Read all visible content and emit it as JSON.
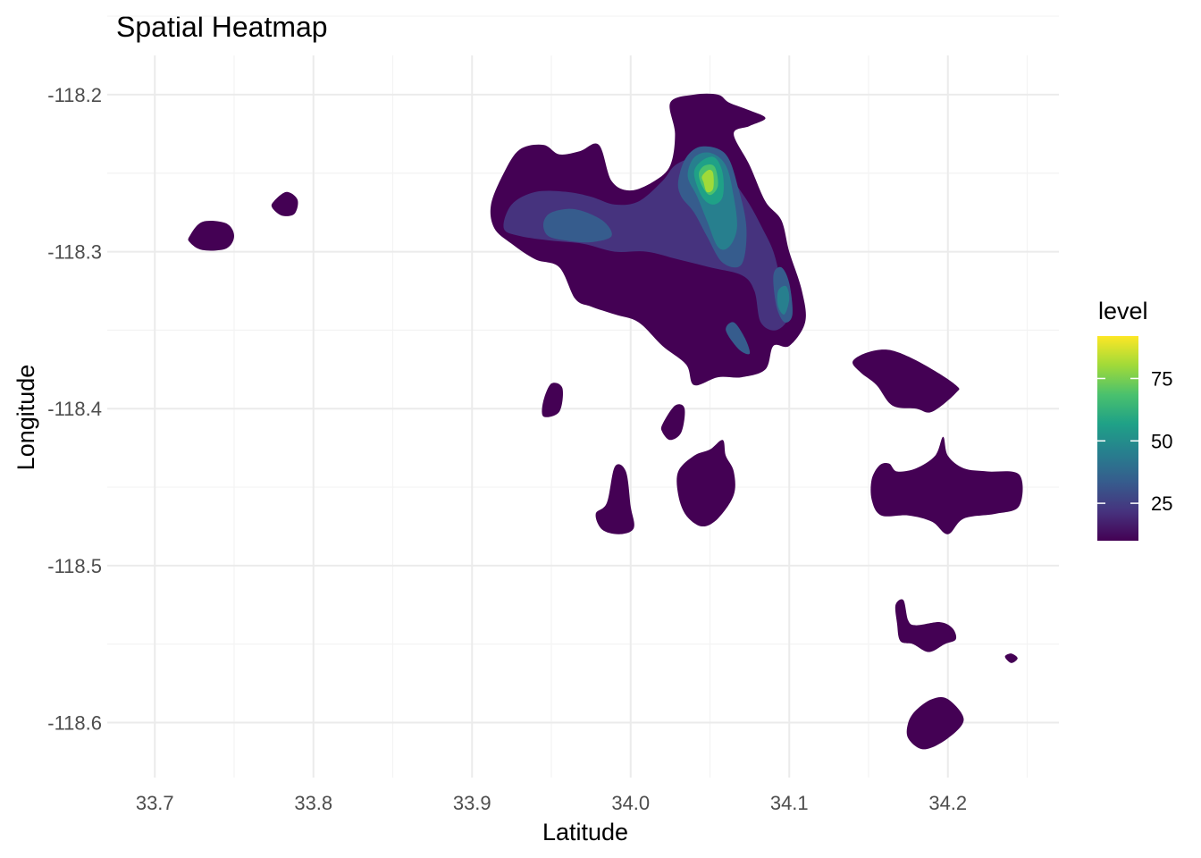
{
  "chart_data": {
    "type": "heatmap",
    "title": "Spatial Heatmap",
    "xlabel": "Latitude",
    "ylabel": "Longitude",
    "xlim": [
      33.67,
      34.27
    ],
    "ylim": [
      -118.635,
      -118.175
    ],
    "x_ticks": [
      33.7,
      33.8,
      33.9,
      34.0,
      34.1,
      34.2
    ],
    "x_tick_labels": [
      "33.7",
      "33.8",
      "33.9",
      "34.0",
      "34.1",
      "34.2"
    ],
    "y_ticks": [
      -118.2,
      -118.3,
      -118.4,
      -118.5,
      -118.6
    ],
    "y_tick_labels": [
      "-118.2",
      "-118.3",
      "-118.4",
      "-118.5",
      "-118.6"
    ],
    "grid": true,
    "legend": {
      "title": "level",
      "placement": "right",
      "range": [
        10,
        92
      ],
      "ticks": [
        25,
        50,
        75
      ],
      "tick_labels": [
        "25",
        "50",
        "75"
      ]
    },
    "colors": [
      "#440154",
      "#46337e",
      "#365c8d",
      "#277f8e",
      "#1fa187",
      "#4ac16d",
      "#a0da39",
      "#fde725"
    ],
    "density_regions": [
      {
        "level": 10,
        "points": [
          [
            33.968,
            -118.236
          ],
          [
            33.98,
            -118.232
          ],
          [
            33.988,
            -118.255
          ],
          [
            34.0,
            -118.261
          ],
          [
            34.015,
            -118.255
          ],
          [
            34.025,
            -118.245
          ],
          [
            34.028,
            -118.225
          ],
          [
            34.025,
            -118.205
          ],
          [
            34.04,
            -118.2
          ],
          [
            34.055,
            -118.2
          ],
          [
            34.062,
            -118.205
          ],
          [
            34.075,
            -118.21
          ],
          [
            34.085,
            -118.215
          ],
          [
            34.075,
            -118.22
          ],
          [
            34.065,
            -118.225
          ],
          [
            34.075,
            -118.245
          ],
          [
            34.085,
            -118.268
          ],
          [
            34.095,
            -118.28
          ],
          [
            34.1,
            -118.3
          ],
          [
            34.108,
            -118.325
          ],
          [
            34.11,
            -118.345
          ],
          [
            34.1,
            -118.36
          ],
          [
            34.09,
            -118.36
          ],
          [
            34.085,
            -118.375
          ],
          [
            34.07,
            -118.38
          ],
          [
            34.055,
            -118.38
          ],
          [
            34.04,
            -118.385
          ],
          [
            34.035,
            -118.372
          ],
          [
            34.02,
            -118.36
          ],
          [
            34.005,
            -118.345
          ],
          [
            33.99,
            -118.34
          ],
          [
            33.975,
            -118.335
          ],
          [
            33.965,
            -118.33
          ],
          [
            33.955,
            -118.31
          ],
          [
            33.94,
            -118.305
          ],
          [
            33.925,
            -118.295
          ],
          [
            33.914,
            -118.285
          ],
          [
            33.912,
            -118.27
          ],
          [
            33.92,
            -118.25
          ],
          [
            33.93,
            -118.235
          ],
          [
            33.945,
            -118.232
          ],
          [
            33.955,
            -118.238
          ]
        ]
      },
      {
        "level": 25,
        "points": [
          [
            33.92,
            -118.285
          ],
          [
            33.925,
            -118.27
          ],
          [
            33.94,
            -118.262
          ],
          [
            33.96,
            -118.262
          ],
          [
            33.975,
            -118.265
          ],
          [
            33.99,
            -118.27
          ],
          [
            34.005,
            -118.268
          ],
          [
            34.02,
            -118.255
          ],
          [
            34.028,
            -118.245
          ],
          [
            34.04,
            -118.24
          ],
          [
            34.055,
            -118.24
          ],
          [
            34.065,
            -118.255
          ],
          [
            34.075,
            -118.27
          ],
          [
            34.083,
            -118.285
          ],
          [
            34.09,
            -118.3
          ],
          [
            34.095,
            -118.32
          ],
          [
            34.1,
            -118.34
          ],
          [
            34.092,
            -118.35
          ],
          [
            34.082,
            -118.345
          ],
          [
            34.078,
            -118.325
          ],
          [
            34.07,
            -118.315
          ],
          [
            34.05,
            -118.31
          ],
          [
            34.03,
            -118.305
          ],
          [
            34.01,
            -118.3
          ],
          [
            33.99,
            -118.3
          ],
          [
            33.97,
            -118.295
          ],
          [
            33.95,
            -118.293
          ],
          [
            33.93,
            -118.29
          ]
        ]
      },
      {
        "level": 35,
        "points": [
          [
            33.945,
            -118.282
          ],
          [
            33.95,
            -118.275
          ],
          [
            33.965,
            -118.273
          ],
          [
            33.982,
            -118.28
          ],
          [
            33.988,
            -118.29
          ],
          [
            33.975,
            -118.294
          ],
          [
            33.96,
            -118.293
          ],
          [
            33.948,
            -118.29
          ]
        ]
      },
      {
        "level": 35,
        "points": [
          [
            34.03,
            -118.255
          ],
          [
            34.035,
            -118.24
          ],
          [
            34.045,
            -118.233
          ],
          [
            34.06,
            -118.238
          ],
          [
            34.068,
            -118.26
          ],
          [
            34.073,
            -118.285
          ],
          [
            34.07,
            -118.308
          ],
          [
            34.058,
            -118.307
          ],
          [
            34.048,
            -118.29
          ],
          [
            34.04,
            -118.275
          ],
          [
            34.032,
            -118.265
          ]
        ]
      },
      {
        "level": 35,
        "points": [
          [
            34.09,
            -118.315
          ],
          [
            34.095,
            -118.31
          ],
          [
            34.1,
            -118.32
          ],
          [
            34.102,
            -118.34
          ],
          [
            34.097,
            -118.345
          ],
          [
            34.092,
            -118.335
          ]
        ]
      },
      {
        "level": 35,
        "points": [
          [
            34.06,
            -118.35
          ],
          [
            34.065,
            -118.345
          ],
          [
            34.072,
            -118.355
          ],
          [
            34.075,
            -118.365
          ],
          [
            34.068,
            -118.362
          ]
        ]
      },
      {
        "level": 35,
        "points": [
          [
            34.165,
            -118.37
          ],
          [
            34.172,
            -118.367
          ],
          [
            34.175,
            -118.372
          ],
          [
            34.168,
            -118.375
          ]
        ]
      },
      {
        "level": 45,
        "points": [
          [
            34.036,
            -118.252
          ],
          [
            34.04,
            -118.24
          ],
          [
            34.05,
            -118.237
          ],
          [
            34.06,
            -118.245
          ],
          [
            34.065,
            -118.265
          ],
          [
            34.067,
            -118.285
          ],
          [
            34.062,
            -118.297
          ],
          [
            34.055,
            -118.297
          ],
          [
            34.048,
            -118.28
          ],
          [
            34.042,
            -118.265
          ]
        ]
      },
      {
        "level": 45,
        "points": [
          [
            34.093,
            -118.325
          ],
          [
            34.098,
            -118.322
          ],
          [
            34.1,
            -118.33
          ],
          [
            34.097,
            -118.34
          ],
          [
            34.093,
            -118.335
          ]
        ]
      },
      {
        "level": 55,
        "points": [
          [
            34.04,
            -118.25
          ],
          [
            34.045,
            -118.242
          ],
          [
            34.053,
            -118.24
          ],
          [
            34.058,
            -118.25
          ],
          [
            34.058,
            -118.265
          ],
          [
            34.052,
            -118.27
          ],
          [
            34.045,
            -118.265
          ]
        ]
      },
      {
        "level": 65,
        "points": [
          [
            34.043,
            -118.25
          ],
          [
            34.047,
            -118.245
          ],
          [
            34.053,
            -118.246
          ],
          [
            34.055,
            -118.258
          ],
          [
            34.05,
            -118.264
          ],
          [
            34.045,
            -118.258
          ]
        ]
      },
      {
        "level": 75,
        "points": [
          [
            34.045,
            -118.252
          ],
          [
            34.049,
            -118.248
          ],
          [
            34.052,
            -118.25
          ],
          [
            34.052,
            -118.26
          ],
          [
            34.048,
            -118.262
          ],
          [
            34.046,
            -118.256
          ]
        ]
      },
      {
        "level": 85,
        "points": [
          [
            34.046,
            -118.254
          ],
          [
            34.05,
            -118.25
          ],
          [
            34.051,
            -118.258
          ],
          [
            34.048,
            -118.26
          ]
        ]
      },
      {
        "level": 10,
        "points": [
          [
            33.722,
            -118.29
          ],
          [
            33.73,
            -118.281
          ],
          [
            33.745,
            -118.282
          ],
          [
            33.75,
            -118.29
          ],
          [
            33.745,
            -118.298
          ],
          [
            33.73,
            -118.299
          ],
          [
            33.722,
            -118.294
          ]
        ]
      },
      {
        "level": 10,
        "points": [
          [
            33.775,
            -118.268
          ],
          [
            33.783,
            -118.262
          ],
          [
            33.79,
            -118.267
          ],
          [
            33.788,
            -118.276
          ],
          [
            33.78,
            -118.277
          ],
          [
            33.774,
            -118.272
          ]
        ]
      },
      {
        "level": 10,
        "points": [
          [
            33.945,
            -118.395
          ],
          [
            33.95,
            -118.384
          ],
          [
            33.957,
            -118.387
          ],
          [
            33.955,
            -118.402
          ],
          [
            33.945,
            -118.405
          ]
        ]
      },
      {
        "level": 10,
        "points": [
          [
            34.02,
            -118.41
          ],
          [
            34.028,
            -118.398
          ],
          [
            34.034,
            -118.4
          ],
          [
            34.032,
            -118.415
          ],
          [
            34.025,
            -118.42
          ],
          [
            34.02,
            -118.415
          ]
        ]
      },
      {
        "level": 10,
        "points": [
          [
            33.985,
            -118.46
          ],
          [
            33.99,
            -118.437
          ],
          [
            33.997,
            -118.44
          ],
          [
            34.0,
            -118.462
          ],
          [
            34.002,
            -118.476
          ],
          [
            33.993,
            -118.48
          ],
          [
            33.982,
            -118.477
          ],
          [
            33.978,
            -118.467
          ]
        ]
      },
      {
        "level": 10,
        "points": [
          [
            34.03,
            -118.44
          ],
          [
            34.04,
            -118.43
          ],
          [
            34.05,
            -118.426
          ],
          [
            34.058,
            -118.42
          ],
          [
            34.06,
            -118.43
          ],
          [
            34.065,
            -118.44
          ],
          [
            34.065,
            -118.455
          ],
          [
            34.055,
            -118.47
          ],
          [
            34.045,
            -118.475
          ],
          [
            34.035,
            -118.468
          ],
          [
            34.03,
            -118.455
          ]
        ]
      },
      {
        "level": 10,
        "points": [
          [
            34.14,
            -118.37
          ],
          [
            34.15,
            -118.364
          ],
          [
            34.165,
            -118.363
          ],
          [
            34.185,
            -118.372
          ],
          [
            34.205,
            -118.385
          ],
          [
            34.205,
            -118.39
          ],
          [
            34.19,
            -118.402
          ],
          [
            34.18,
            -118.4
          ],
          [
            34.165,
            -118.398
          ],
          [
            34.155,
            -118.385
          ],
          [
            34.145,
            -118.377
          ]
        ]
      },
      {
        "level": 10,
        "points": [
          [
            34.152,
            -118.445
          ],
          [
            34.157,
            -118.436
          ],
          [
            34.163,
            -118.435
          ],
          [
            34.168,
            -118.44
          ],
          [
            34.18,
            -118.438
          ],
          [
            34.192,
            -118.43
          ],
          [
            34.197,
            -118.418
          ],
          [
            34.2,
            -118.43
          ],
          [
            34.21,
            -118.438
          ],
          [
            34.225,
            -118.44
          ],
          [
            34.245,
            -118.442
          ],
          [
            34.245,
            -118.462
          ],
          [
            34.23,
            -118.467
          ],
          [
            34.21,
            -118.47
          ],
          [
            34.2,
            -118.48
          ],
          [
            34.19,
            -118.472
          ],
          [
            34.175,
            -118.468
          ],
          [
            34.158,
            -118.468
          ],
          [
            34.152,
            -118.458
          ]
        ]
      },
      {
        "level": 10,
        "points": [
          [
            34.167,
            -118.525
          ],
          [
            34.172,
            -118.522
          ],
          [
            34.175,
            -118.535
          ],
          [
            34.18,
            -118.538
          ],
          [
            34.195,
            -118.536
          ],
          [
            34.203,
            -118.54
          ],
          [
            34.205,
            -118.547
          ],
          [
            34.198,
            -118.55
          ],
          [
            34.188,
            -118.555
          ],
          [
            34.178,
            -118.55
          ],
          [
            34.17,
            -118.548
          ],
          [
            34.168,
            -118.537
          ]
        ]
      },
      {
        "level": 10,
        "points": [
          [
            34.236,
            -118.558
          ],
          [
            34.24,
            -118.556
          ],
          [
            34.244,
            -118.559
          ],
          [
            34.24,
            -118.562
          ]
        ]
      },
      {
        "level": 10,
        "points": [
          [
            34.175,
            -118.6
          ],
          [
            34.18,
            -118.592
          ],
          [
            34.19,
            -118.585
          ],
          [
            34.2,
            -118.585
          ],
          [
            34.21,
            -118.598
          ],
          [
            34.2,
            -118.61
          ],
          [
            34.185,
            -118.617
          ],
          [
            34.175,
            -118.61
          ]
        ]
      }
    ]
  }
}
